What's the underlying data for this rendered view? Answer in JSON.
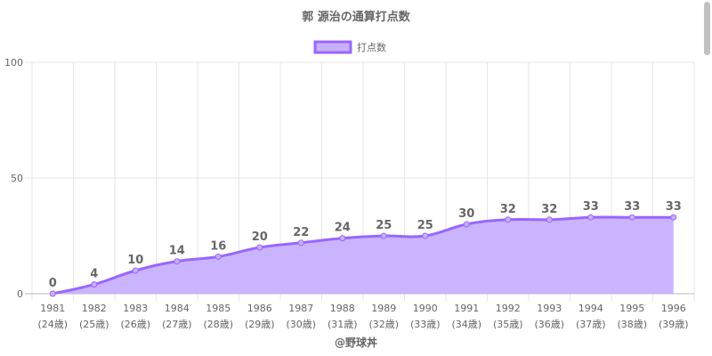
{
  "chart_data": {
    "type": "line",
    "title": "郭 源治の通算打点数",
    "legend": {
      "entries": [
        "打点数"
      ],
      "placement": "top"
    },
    "categories": [
      "1981",
      "1982",
      "1983",
      "1984",
      "1985",
      "1986",
      "1987",
      "1988",
      "1989",
      "1990",
      "1991",
      "1992",
      "1993",
      "1994",
      "1995",
      "1996"
    ],
    "sublabels": [
      "(24歳)",
      "(25歳)",
      "(26歳)",
      "(27歳)",
      "(28歳)",
      "(29歳)",
      "(30歳)",
      "(31歳)",
      "(32歳)",
      "(33歳)",
      "(34歳)",
      "(35歳)",
      "(36歳)",
      "(37歳)",
      "(38歳)",
      "(39歳)"
    ],
    "series": [
      {
        "name": "打点数",
        "values": [
          0,
          4,
          10,
          14,
          16,
          20,
          22,
          24,
          25,
          25,
          30,
          32,
          32,
          33,
          33,
          33
        ]
      }
    ],
    "ylim": [
      0,
      100
    ],
    "yticks": [
      0,
      50,
      100
    ],
    "grid": true,
    "filled_area": true,
    "data_labels": true,
    "colors": {
      "line": "#9966ff",
      "fill": "#c7b0ff",
      "grid": "#e6e6e6",
      "text": "#666666"
    }
  },
  "footer": "@野球丼"
}
